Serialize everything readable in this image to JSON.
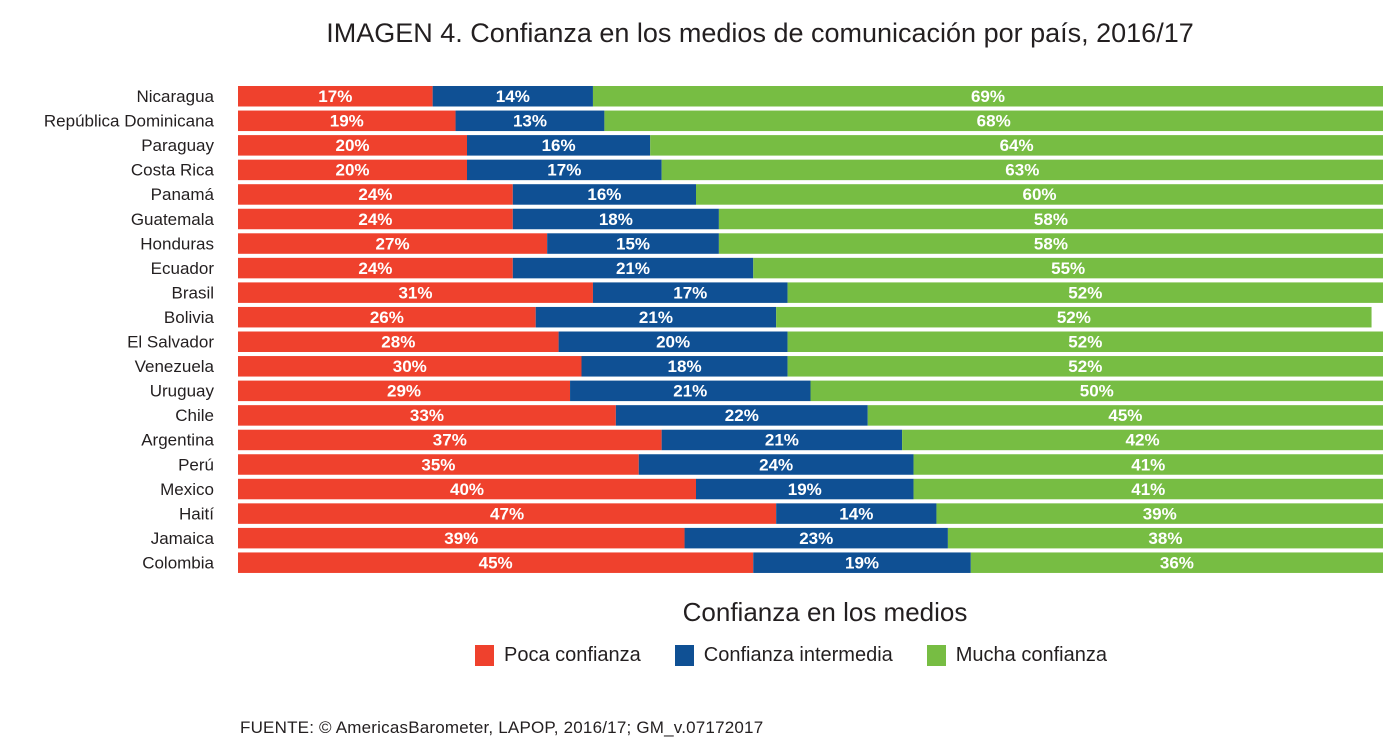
{
  "chart_data": {
    "type": "bar",
    "orientation": "horizontal",
    "stacked": true,
    "title": "IMAGEN 4. Confianza en los medios de comunicación por país, 2016/17",
    "xlabel": "",
    "ylabel": "",
    "xlim": [
      0,
      100
    ],
    "grid": false,
    "value_format": "percent",
    "categories": [
      "Nicaragua",
      "República Dominicana",
      "Paraguay",
      "Costa Rica",
      "Panamá",
      "Guatemala",
      "Honduras",
      "Ecuador",
      "Brasil",
      "Bolivia",
      "El Salvador",
      "Venezuela",
      "Uruguay",
      "Chile",
      "Argentina",
      "Perú",
      "Mexico",
      "Haití",
      "Jamaica",
      "Colombia"
    ],
    "series": [
      {
        "name": "Poca confianza",
        "color": "#ef412d",
        "values": [
          17,
          19,
          20,
          20,
          24,
          24,
          27,
          24,
          31,
          26,
          28,
          30,
          29,
          33,
          37,
          35,
          40,
          47,
          39,
          45
        ]
      },
      {
        "name": "Confianza intermedia",
        "color": "#0f5094",
        "values": [
          14,
          13,
          16,
          17,
          16,
          18,
          15,
          21,
          17,
          21,
          20,
          18,
          21,
          22,
          21,
          24,
          19,
          14,
          23,
          19
        ]
      },
      {
        "name": "Mucha confianza",
        "color": "#77bd43",
        "values": [
          69,
          68,
          64,
          63,
          60,
          58,
          58,
          55,
          52,
          52,
          52,
          52,
          50,
          45,
          42,
          41,
          41,
          39,
          38,
          36
        ]
      }
    ],
    "legend": {
      "title": "Confianza en los medios",
      "placement": "bottom-center"
    }
  },
  "source": "FUENTE: © AmericasBarometer, LAPOP, 2016/17; GM_v.07172017"
}
